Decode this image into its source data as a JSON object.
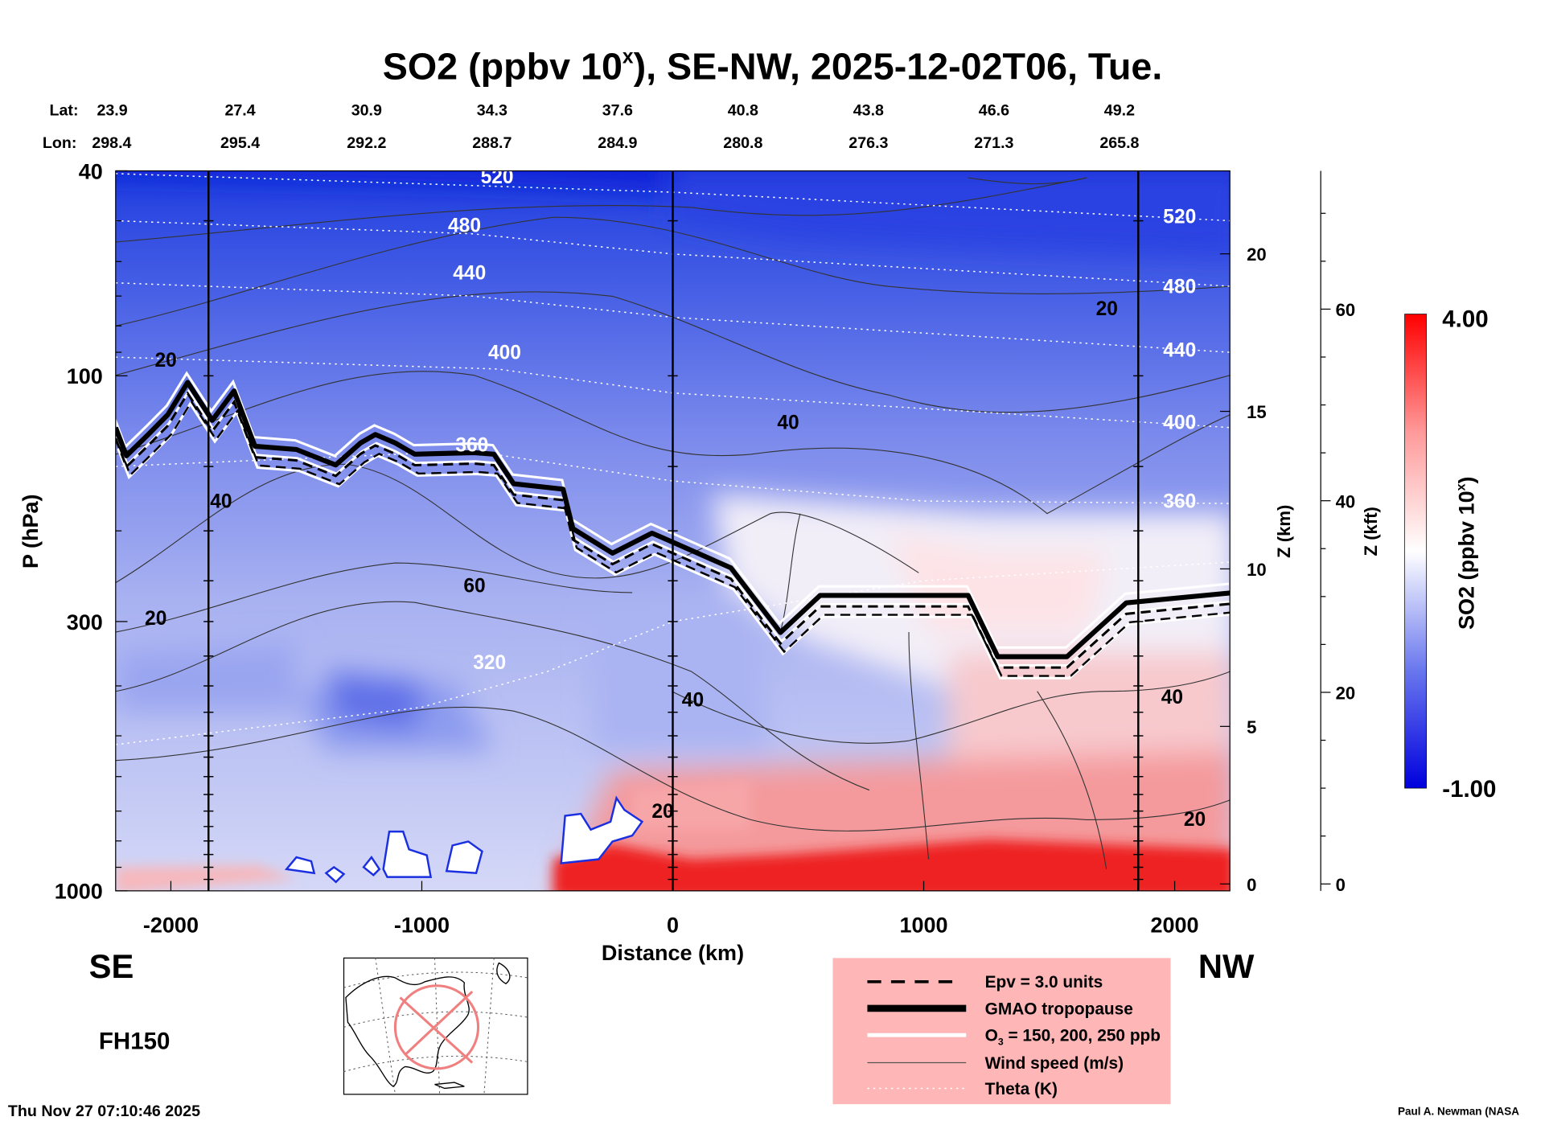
{
  "chart_data": {
    "type": "heatmap",
    "title": "SO2 (ppbv 10",
    "title_sup": "x",
    "title_rest": "), SE-NW, 2025-12-02T06, Tue.",
    "lat_label": "Lat:",
    "lon_label": "Lon:",
    "lats": [
      "23.9",
      "27.4",
      "30.9",
      "34.3",
      "37.6",
      "40.8",
      "43.8",
      "46.6",
      "49.2"
    ],
    "lons": [
      "298.4",
      "295.4",
      "292.2",
      "288.7",
      "284.9",
      "280.8",
      "276.3",
      "271.3",
      "265.8"
    ],
    "latlon_distance_km": [
      -2220,
      -1724,
      -1220,
      -720,
      -220,
      280,
      780,
      1280,
      1780
    ],
    "xlabel": "Distance (km)",
    "xlim": [
      -2220,
      2220
    ],
    "xticks": [
      "-2000",
      "-1000",
      "0",
      "1000",
      "2000"
    ],
    "xtick_values": [
      -2000,
      -1000,
      0,
      1000,
      2000
    ],
    "ylabel": "P (hPa)",
    "ylim": [
      1000,
      40
    ],
    "yscale": "log",
    "yticks": [
      "40",
      "100",
      "300",
      "1000"
    ],
    "ytick_values": [
      40,
      100,
      300,
      1000
    ],
    "z_km_label": "Z (km)",
    "z_km_ticks": [
      "0",
      "5",
      "10",
      "15",
      "20"
    ],
    "z_km_values": [
      0,
      5,
      10,
      15,
      20
    ],
    "z_kft_label": "Z (kft)",
    "z_kft_ticks": [
      "0",
      "20",
      "40",
      "60"
    ],
    "z_kft_values": [
      0,
      20,
      40,
      60
    ],
    "vertical_markers_km": [
      -1850,
      0,
      1855
    ],
    "colorbar": {
      "label": "SO2 (ppbv 10",
      "label_sup": "x",
      "label_end": ")",
      "max_label": "4.00",
      "min_label": "-1.00",
      "range": [
        -1.0,
        4.0
      ],
      "colors": [
        "#0000dd",
        "#ffffff",
        "#ff0000"
      ]
    },
    "left_direction": "SE",
    "right_direction": "NW",
    "forecast_hour": "FH150",
    "tropopause": [
      [
        -2220,
        126
      ],
      [
        -2177,
        143
      ],
      [
        -2090,
        130
      ],
      [
        -2012,
        119
      ],
      [
        -1933,
        103
      ],
      [
        -1835,
        122
      ],
      [
        -1748,
        107
      ],
      [
        -1665,
        137
      ],
      [
        -1500,
        139
      ],
      [
        -1343,
        149
      ],
      [
        -1244,
        135
      ],
      [
        -1185,
        130
      ],
      [
        -1106,
        135
      ],
      [
        -1028,
        142
      ],
      [
        -791,
        141
      ],
      [
        -713,
        142
      ],
      [
        -634,
        162
      ],
      [
        -437,
        166
      ],
      [
        -398,
        198
      ],
      [
        -240,
        221
      ],
      [
        -83,
        202
      ],
      [
        -4,
        210
      ],
      [
        232,
        236
      ],
      [
        429,
        315
      ],
      [
        587,
        267
      ],
      [
        1177,
        267
      ],
      [
        1295,
        351
      ],
      [
        1571,
        351
      ],
      [
        1807,
        276
      ],
      [
        2220,
        264
      ]
    ],
    "theta": [
      {
        "label": "520",
        "points": [
          [
            -2220,
            40.5
          ],
          [
            0,
            44
          ],
          [
            2220,
            50
          ]
        ]
      },
      {
        "label": "480",
        "points": [
          [
            -2220,
            50
          ],
          [
            -800,
            53
          ],
          [
            0,
            58
          ],
          [
            2220,
            67
          ]
        ]
      },
      {
        "label": "440",
        "points": [
          [
            -2220,
            66
          ],
          [
            -800,
            70
          ],
          [
            0,
            77
          ],
          [
            2220,
            90
          ]
        ]
      },
      {
        "label": "400",
        "points": [
          [
            -2220,
            92
          ],
          [
            -700,
            97
          ],
          [
            0,
            108
          ],
          [
            2220,
            126
          ]
        ]
      },
      {
        "label": "360",
        "points": [
          [
            -2220,
            150
          ],
          [
            -800,
            140
          ],
          [
            0,
            160
          ],
          [
            1000,
            175
          ],
          [
            2220,
            177
          ]
        ]
      },
      {
        "label": "320",
        "points": [
          [
            -2220,
            520
          ],
          [
            -1000,
            440
          ],
          [
            -500,
            375
          ],
          [
            0,
            300
          ],
          [
            1000,
            250
          ],
          [
            2220,
            230
          ]
        ]
      }
    ],
    "theta_labels": [
      {
        "text": "520",
        "at": [
          -700,
          41
        ]
      },
      {
        "text": "480",
        "at": [
          -830,
          51
        ]
      },
      {
        "text": "440",
        "at": [
          -810,
          63
        ]
      },
      {
        "text": "400",
        "at": [
          -670,
          90
        ]
      },
      {
        "text": "360",
        "at": [
          -800,
          136
        ]
      },
      {
        "text": "320",
        "at": [
          -730,
          360
        ]
      },
      {
        "text": "520",
        "at": [
          2020,
          49
        ]
      },
      {
        "text": "480",
        "at": [
          2020,
          67
        ]
      },
      {
        "text": "440",
        "at": [
          2020,
          89
        ]
      },
      {
        "text": "400",
        "at": [
          2020,
          123
        ]
      },
      {
        "text": "360",
        "at": [
          2020,
          175
        ]
      }
    ],
    "wind_labels": [
      {
        "text": "20",
        "at": [
          1730,
          -200,
          74
        ]
      },
      {
        "text": "20",
        "at": [
          -2020,
          0,
          93
        ]
      },
      {
        "text": "40",
        "at": [
          -1800,
          0,
          175
        ]
      },
      {
        "text": "60",
        "at": [
          -790,
          0,
          255
        ]
      },
      {
        "text": "20",
        "at": [
          -2060,
          0,
          295
        ]
      },
      {
        "text": "40",
        "at": [
          460,
          0,
          123
        ]
      },
      {
        "text": "40",
        "at": [
          80,
          0,
          425
        ]
      },
      {
        "text": "40",
        "at": [
          1990,
          0,
          420
        ]
      },
      {
        "text": "20",
        "at": [
          -40,
          0,
          700
        ]
      },
      {
        "text": "20",
        "at": [
          2080,
          0,
          725
        ]
      }
    ],
    "legend": [
      {
        "label": "Epv = 3.0 units",
        "style": "dashed"
      },
      {
        "label": "GMAO tropopause",
        "style": "thick"
      },
      {
        "label": "O",
        "sub": "3",
        "rest": " = 150, 200, 250 ppb",
        "style": "white"
      },
      {
        "label": "Wind speed (m/s)",
        "style": "thin"
      },
      {
        "label": "Theta (K)",
        "style": "dotted"
      }
    ],
    "legend_bg": "#ffb6b6"
  },
  "footer": {
    "timestamp": "Thu Nov 27 07:10:46 2025",
    "credit": "Paul A. Newman (NASA"
  }
}
